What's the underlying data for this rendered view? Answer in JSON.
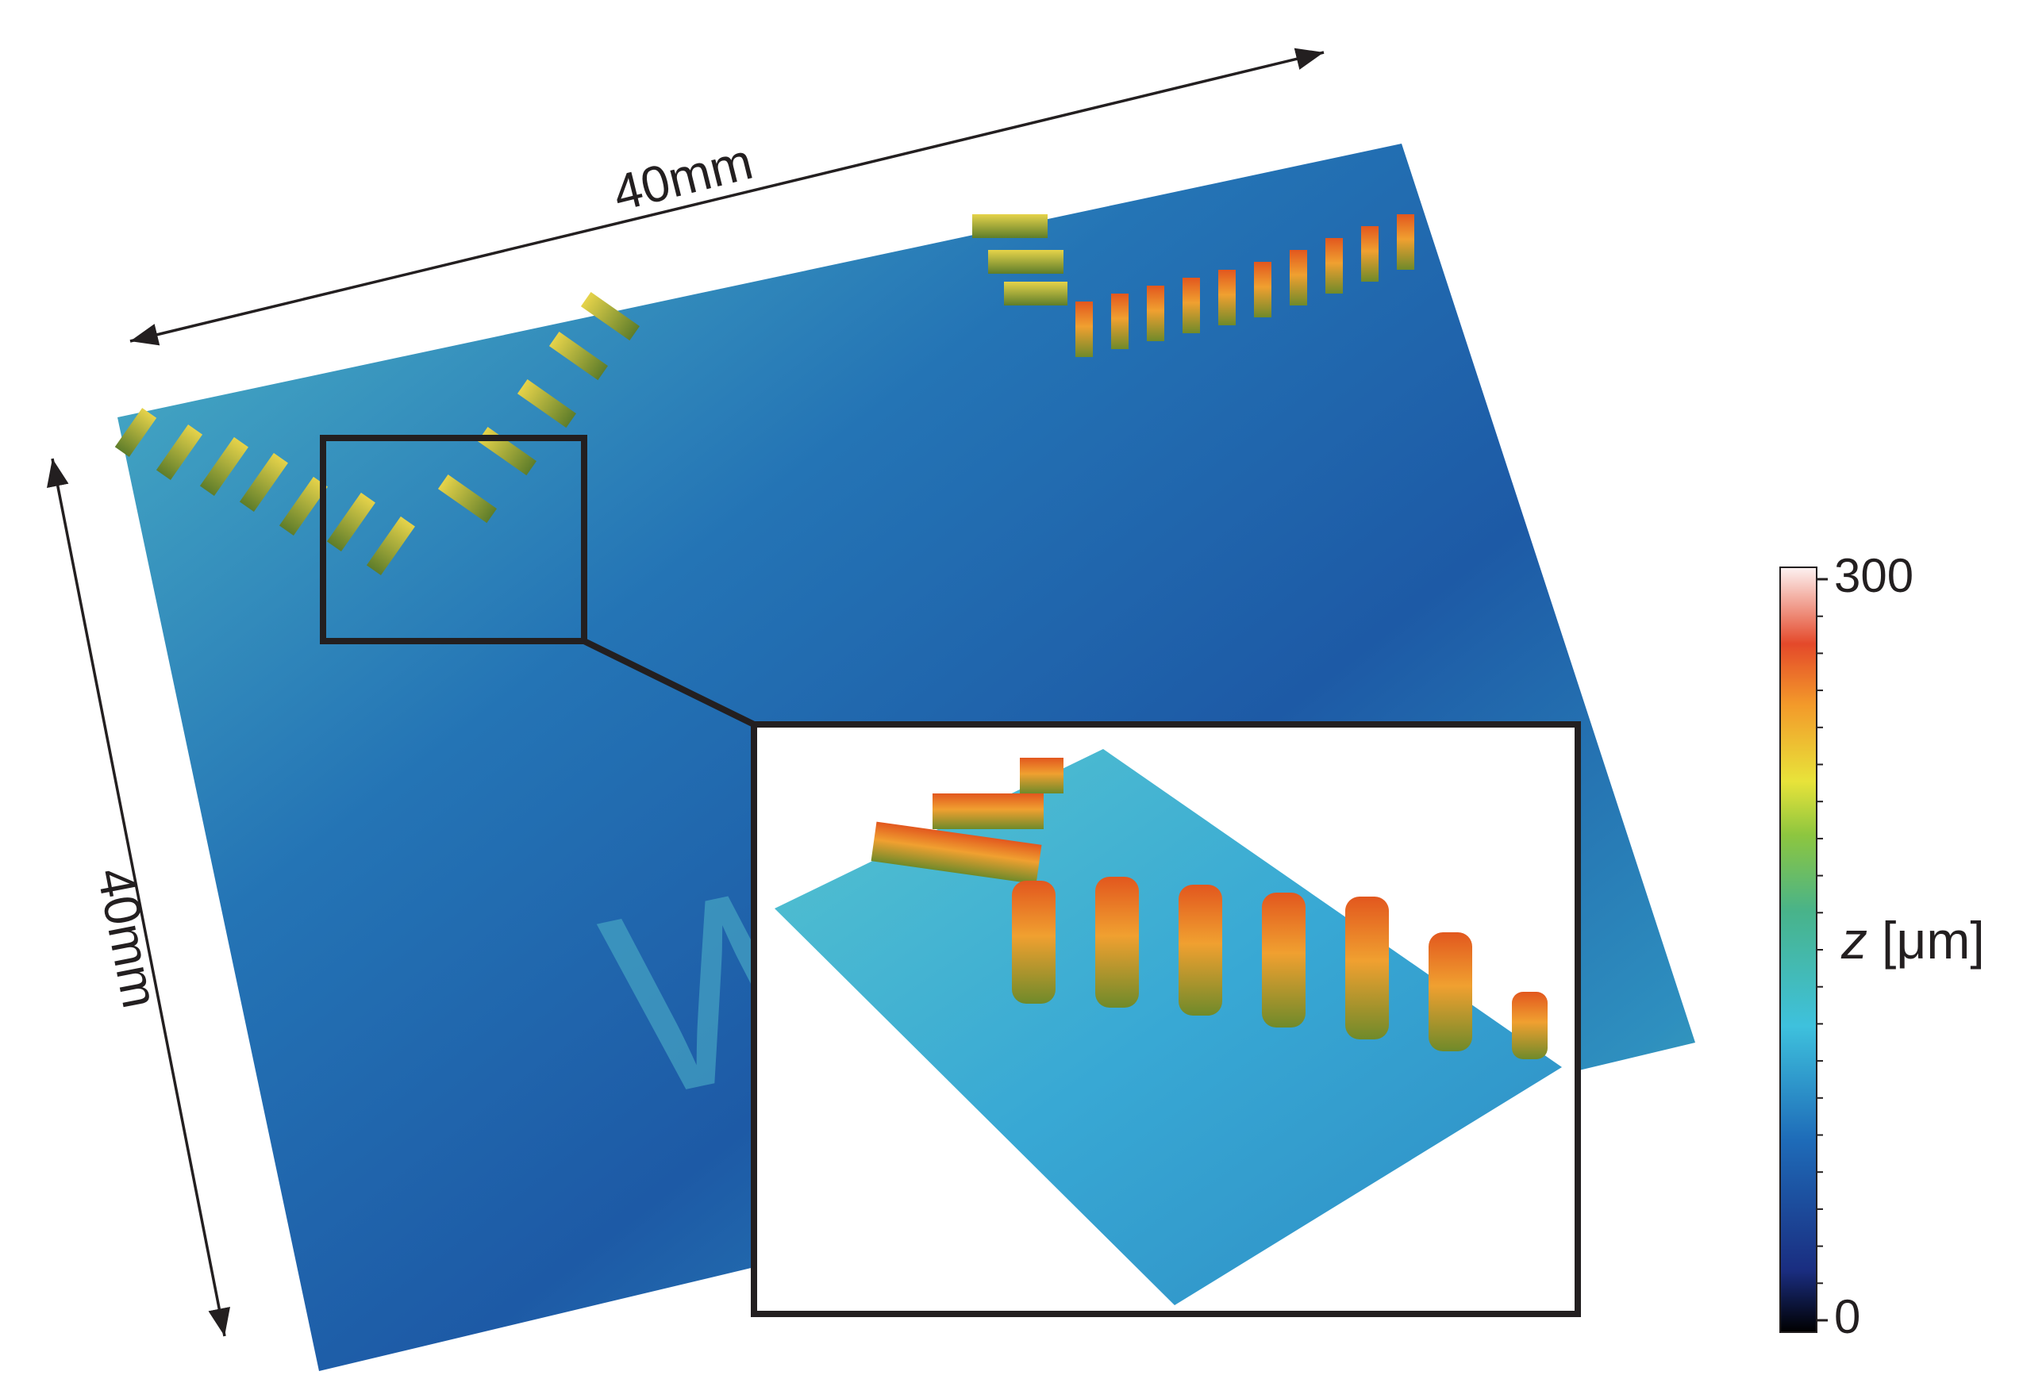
{
  "dimensions": {
    "width_label": "40mm",
    "height_label": "40mm"
  },
  "colorbar": {
    "variable": "z",
    "unit": "[μm]",
    "lim": [
      0,
      300
    ],
    "ticks": [
      0,
      300
    ]
  }
}
